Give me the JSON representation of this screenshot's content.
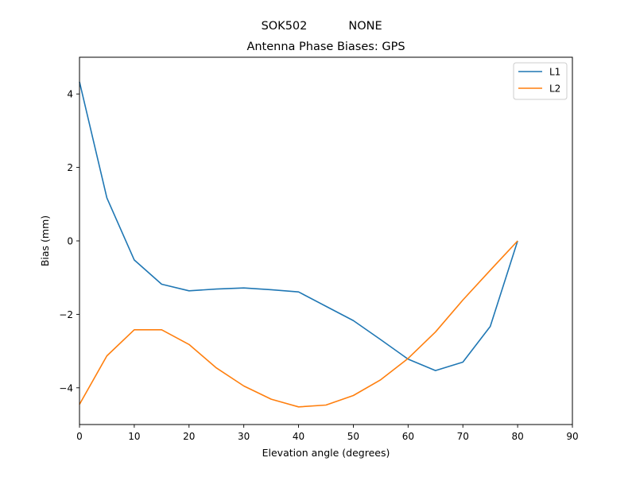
{
  "figure": {
    "suptitle_left": "SOK502",
    "suptitle_right": "NONE"
  },
  "chart_data": {
    "type": "line",
    "title": "Antenna Phase Biases: GPS",
    "xlabel": "Elevation angle (degrees)",
    "ylabel": "Bias (mm)",
    "xlim": [
      0,
      90
    ],
    "ylim": [
      -5,
      5
    ],
    "xticks": [
      0,
      10,
      20,
      30,
      40,
      50,
      60,
      70,
      80,
      90
    ],
    "yticks": [
      -4,
      -2,
      0,
      2,
      4
    ],
    "ytick_labels": [
      "−4",
      "−2",
      "0",
      "2",
      "4"
    ],
    "grid": false,
    "legend_position": "upper right",
    "x": [
      0,
      5,
      10,
      15,
      20,
      25,
      30,
      35,
      40,
      45,
      50,
      55,
      60,
      65,
      70,
      75,
      80
    ],
    "series": [
      {
        "name": "L1",
        "color": "#1f77b4",
        "values": [
          4.33,
          1.17,
          -0.52,
          -1.18,
          -1.36,
          -1.31,
          -1.28,
          -1.33,
          -1.39,
          -1.78,
          -2.17,
          -2.69,
          -3.22,
          -3.53,
          -3.3,
          -2.33,
          0.0
        ]
      },
      {
        "name": "L2",
        "color": "#ff7f0e",
        "values": [
          -4.45,
          -3.13,
          -2.42,
          -2.42,
          -2.82,
          -3.46,
          -3.95,
          -4.31,
          -4.52,
          -4.47,
          -4.21,
          -3.78,
          -3.2,
          -2.48,
          -1.61,
          -0.8,
          0.0
        ]
      }
    ]
  }
}
